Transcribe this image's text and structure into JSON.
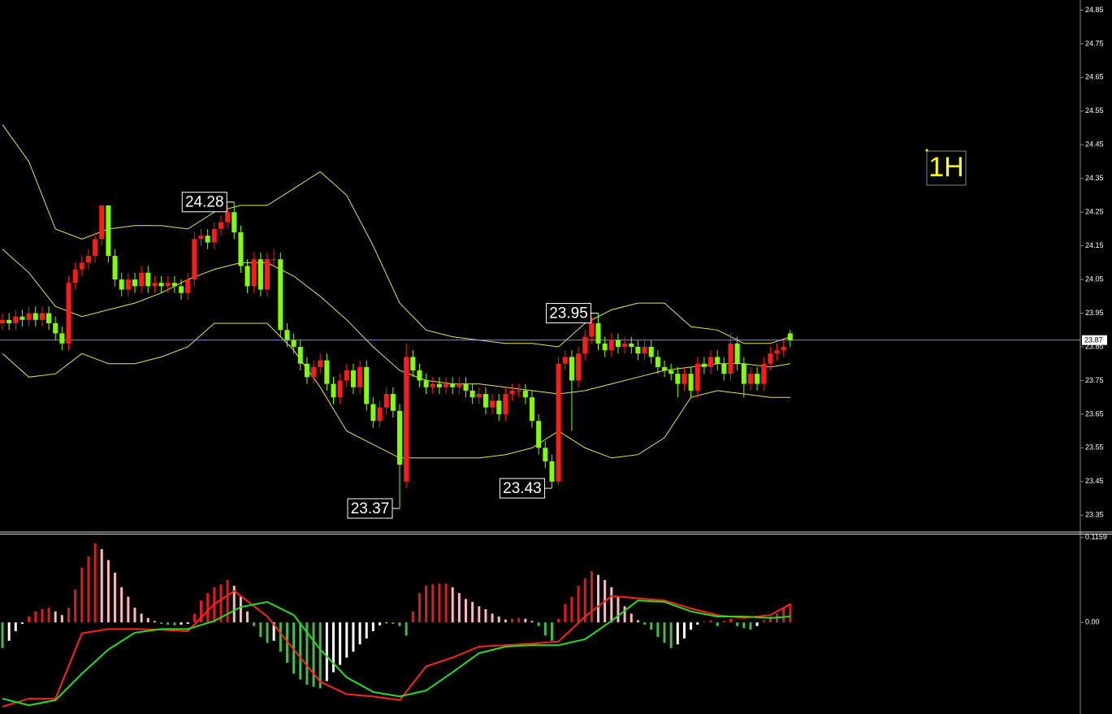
{
  "chart_data": [
    {
      "type": "candlestick",
      "timeframe": "1H",
      "up_color": "#ff1a1a",
      "down_color": "#7fff00",
      "band_color": "#e6e64c",
      "grid": false,
      "ylim": [
        23.3,
        24.88
      ],
      "yticks": [
        24.85,
        24.75,
        24.65,
        24.55,
        24.45,
        24.35,
        24.25,
        24.15,
        24.05,
        23.95,
        23.85,
        23.75,
        23.65,
        23.55,
        23.45,
        23.35
      ],
      "last_price": 23.87,
      "open": [
        23.92,
        23.93,
        23.92,
        23.94,
        23.93,
        23.95,
        23.93,
        23.95,
        23.92,
        23.89,
        23.86,
        24.04,
        24.08,
        24.1,
        24.12,
        24.17,
        24.27,
        24.12,
        24.05,
        24.02,
        24.05,
        24.03,
        24.07,
        24.03,
        24.04,
        24.03,
        24.04,
        24.03,
        24.01,
        24.05,
        24.17,
        24.18,
        24.16,
        24.2,
        24.22,
        24.25,
        24.19,
        24.09,
        24.03,
        24.11,
        24.02,
        24.11,
        24.11,
        23.9,
        23.87,
        23.85,
        23.8,
        23.76,
        23.79,
        23.81,
        23.74,
        23.7,
        23.75,
        23.78,
        23.73,
        23.79,
        23.68,
        23.63,
        23.67,
        23.71,
        23.66,
        23.45,
        23.82,
        23.78,
        23.75,
        23.73,
        23.74,
        23.73,
        23.74,
        23.73,
        23.74,
        23.72,
        23.7,
        23.71,
        23.67,
        23.69,
        23.65,
        23.71,
        23.72,
        23.72,
        23.7,
        23.63,
        23.55,
        23.51,
        23.45,
        23.8,
        23.82,
        23.75,
        23.83,
        23.88,
        23.92,
        23.86,
        23.84,
        23.87,
        23.85,
        23.86,
        23.85,
        23.83,
        23.85,
        23.82,
        23.79,
        23.78,
        23.77,
        23.74,
        23.77,
        23.72,
        23.8,
        23.79,
        23.82,
        23.8,
        23.77,
        23.86,
        23.8,
        23.74,
        23.77,
        23.74,
        23.8,
        23.83,
        23.84,
        23.89
      ],
      "high": [
        23.95,
        23.95,
        23.96,
        23.96,
        23.97,
        23.97,
        23.97,
        23.97,
        23.94,
        23.91,
        24.06,
        24.1,
        24.12,
        24.14,
        24.19,
        24.27,
        24.27,
        24.14,
        24.07,
        24.07,
        24.07,
        24.09,
        24.09,
        24.06,
        24.06,
        24.06,
        24.06,
        24.05,
        24.07,
        24.19,
        24.2,
        24.2,
        24.22,
        24.24,
        24.27,
        24.28,
        24.21,
        24.11,
        24.13,
        24.13,
        24.13,
        24.14,
        24.13,
        23.92,
        23.89,
        23.87,
        23.82,
        23.81,
        23.83,
        23.83,
        23.76,
        23.77,
        23.8,
        23.8,
        23.81,
        23.81,
        23.7,
        23.69,
        23.73,
        23.73,
        23.68,
        23.86,
        23.84,
        23.8,
        23.77,
        23.76,
        23.76,
        23.76,
        23.76,
        23.76,
        23.76,
        23.74,
        23.73,
        23.73,
        23.71,
        23.71,
        23.73,
        23.74,
        23.74,
        23.74,
        23.72,
        23.65,
        23.57,
        23.53,
        23.82,
        23.84,
        23.84,
        23.85,
        23.9,
        23.94,
        23.95,
        23.88,
        23.89,
        23.89,
        23.88,
        23.88,
        23.87,
        23.87,
        23.87,
        23.84,
        23.81,
        23.8,
        23.79,
        23.79,
        23.79,
        23.82,
        23.82,
        23.84,
        23.84,
        23.82,
        23.89,
        23.88,
        23.82,
        23.79,
        23.79,
        23.82,
        23.85,
        23.86,
        23.87,
        23.9
      ],
      "low": [
        23.9,
        23.9,
        23.9,
        23.91,
        23.91,
        23.91,
        23.91,
        23.9,
        23.87,
        23.84,
        23.84,
        24.02,
        24.06,
        24.08,
        24.1,
        24.15,
        24.1,
        24.03,
        24.0,
        24.0,
        24.01,
        24.01,
        24.01,
        24.01,
        24.01,
        24.01,
        24.01,
        23.99,
        23.99,
        24.03,
        24.15,
        24.14,
        24.14,
        24.18,
        24.2,
        24.17,
        24.07,
        24.01,
        24.01,
        24.0,
        24.0,
        24.09,
        23.88,
        23.85,
        23.83,
        23.78,
        23.74,
        23.74,
        23.77,
        23.72,
        23.68,
        23.68,
        23.73,
        23.71,
        23.71,
        23.66,
        23.61,
        23.61,
        23.65,
        23.64,
        23.37,
        23.43,
        23.76,
        23.73,
        23.71,
        23.71,
        23.71,
        23.71,
        23.71,
        23.71,
        23.7,
        23.68,
        23.68,
        23.65,
        23.65,
        23.63,
        23.63,
        23.69,
        23.7,
        23.68,
        23.61,
        23.53,
        23.49,
        23.43,
        23.44,
        23.78,
        23.6,
        23.73,
        23.81,
        23.86,
        23.84,
        23.82,
        23.82,
        23.83,
        23.83,
        23.83,
        23.81,
        23.81,
        23.8,
        23.77,
        23.76,
        23.75,
        23.7,
        23.72,
        23.7,
        23.7,
        23.77,
        23.77,
        23.78,
        23.75,
        23.75,
        23.78,
        23.7,
        23.72,
        23.72,
        23.72,
        23.78,
        23.81,
        23.82,
        23.85
      ],
      "close": [
        23.93,
        23.92,
        23.94,
        23.93,
        23.95,
        23.93,
        23.95,
        23.92,
        23.89,
        23.86,
        24.04,
        24.08,
        24.1,
        24.12,
        24.17,
        24.27,
        24.12,
        24.05,
        24.02,
        24.05,
        24.03,
        24.07,
        24.03,
        24.04,
        24.03,
        24.04,
        24.03,
        24.01,
        24.05,
        24.17,
        24.18,
        24.16,
        24.2,
        24.22,
        24.25,
        24.19,
        24.09,
        24.03,
        24.11,
        24.02,
        24.11,
        24.11,
        23.9,
        23.87,
        23.85,
        23.8,
        23.76,
        23.79,
        23.81,
        23.74,
        23.7,
        23.75,
        23.78,
        23.73,
        23.79,
        23.68,
        23.63,
        23.67,
        23.71,
        23.66,
        23.5,
        23.82,
        23.78,
        23.75,
        23.73,
        23.74,
        23.73,
        23.74,
        23.73,
        23.74,
        23.72,
        23.7,
        23.71,
        23.67,
        23.69,
        23.65,
        23.71,
        23.72,
        23.72,
        23.7,
        23.63,
        23.55,
        23.51,
        23.45,
        23.8,
        23.82,
        23.75,
        23.83,
        23.88,
        23.92,
        23.86,
        23.84,
        23.87,
        23.85,
        23.86,
        23.85,
        23.83,
        23.85,
        23.82,
        23.79,
        23.78,
        23.77,
        23.74,
        23.77,
        23.72,
        23.8,
        23.79,
        23.82,
        23.8,
        23.77,
        23.86,
        23.8,
        23.74,
        23.77,
        23.74,
        23.8,
        23.83,
        23.84,
        23.85,
        23.87
      ],
      "bands": [
        {
          "x": [
            0,
            4,
            8,
            12,
            16,
            20,
            24,
            28,
            32,
            36,
            40,
            44,
            48,
            52,
            56,
            60,
            64,
            68,
            72,
            76,
            80,
            84,
            88,
            92,
            96,
            100,
            104,
            108,
            112,
            116,
            119
          ],
          "values": [
            24.51,
            24.4,
            24.2,
            24.17,
            24.2,
            24.21,
            24.21,
            24.2,
            24.25,
            24.27,
            24.27,
            24.32,
            24.37,
            24.3,
            24.15,
            23.98,
            23.9,
            23.88,
            23.87,
            23.86,
            23.86,
            23.85,
            23.92,
            23.96,
            23.98,
            23.98,
            23.91,
            23.9,
            23.86,
            23.86,
            23.88
          ]
        },
        {
          "x": [
            0,
            4,
            8,
            12,
            16,
            20,
            24,
            28,
            32,
            36,
            40,
            44,
            48,
            52,
            56,
            60,
            64,
            68,
            72,
            76,
            80,
            84,
            88,
            92,
            96,
            100,
            104,
            108,
            112,
            116,
            119
          ],
          "values": [
            24.14,
            24.07,
            23.97,
            23.94,
            23.96,
            23.98,
            24.01,
            24.05,
            24.08,
            24.1,
            24.1,
            24.06,
            24.0,
            23.93,
            23.85,
            23.78,
            23.75,
            23.74,
            23.74,
            23.73,
            23.72,
            23.71,
            23.72,
            23.74,
            23.76,
            23.78,
            23.79,
            23.8,
            23.8,
            23.79,
            23.8
          ]
        },
        {
          "x": [
            0,
            4,
            8,
            12,
            16,
            20,
            24,
            28,
            32,
            36,
            40,
            44,
            48,
            52,
            56,
            60,
            64,
            68,
            72,
            76,
            80,
            84,
            88,
            92,
            96,
            100,
            104,
            108,
            112,
            116,
            119
          ],
          "values": [
            23.83,
            23.76,
            23.77,
            23.83,
            23.8,
            23.8,
            23.82,
            23.85,
            23.92,
            23.92,
            23.92,
            23.84,
            23.73,
            23.6,
            23.56,
            23.52,
            23.52,
            23.52,
            23.52,
            23.53,
            23.55,
            23.6,
            23.55,
            23.52,
            23.53,
            23.58,
            23.7,
            23.72,
            23.71,
            23.7,
            23.7
          ]
        }
      ],
      "annotations": [
        {
          "index": 35,
          "value": 24.28
        },
        {
          "index": 90,
          "value": 23.95
        },
        {
          "index": 60,
          "value": 23.37
        },
        {
          "index": 83,
          "value": 23.43
        }
      ]
    },
    {
      "type": "macd",
      "ylim": [
        -0.125,
        0.12
      ],
      "yticks": [
        0.1159,
        {
          "value": 0,
          "label": "0.00"
        }
      ],
      "rise_color": "#e41a1a",
      "fall_color": "#ffb6c1",
      "drop_color": "#44bb44",
      "recover_color": "#ffffff",
      "histogram": [
        -0.035,
        -0.025,
        -0.012,
        -0.002,
        0.008,
        0.015,
        0.018,
        0.02,
        0.015,
        0.01,
        0.02,
        0.045,
        0.075,
        0.09,
        0.108,
        0.1,
        0.085,
        0.068,
        0.048,
        0.035,
        0.02,
        0.012,
        0.006,
        0.002,
        -0.002,
        -0.003,
        -0.004,
        -0.003,
        -0.002,
        0.012,
        0.03,
        0.04,
        0.048,
        0.052,
        0.058,
        0.05,
        0.035,
        0.015,
        -0.005,
        -0.02,
        -0.028,
        -0.025,
        -0.04,
        -0.055,
        -0.07,
        -0.078,
        -0.085,
        -0.088,
        -0.09,
        -0.08,
        -0.068,
        -0.058,
        -0.048,
        -0.04,
        -0.03,
        -0.022,
        -0.012,
        -0.004,
        -0.001,
        -0.002,
        -0.005,
        -0.018,
        0.015,
        0.04,
        0.05,
        0.052,
        0.053,
        0.053,
        0.048,
        0.04,
        0.032,
        0.028,
        0.022,
        0.018,
        0.012,
        0.008,
        0.004,
        0.005,
        0.006,
        0.005,
        0.002,
        -0.005,
        -0.018,
        -0.025,
        0.005,
        0.025,
        0.035,
        0.05,
        0.06,
        0.07,
        0.065,
        0.058,
        0.048,
        0.036,
        0.022,
        0.012,
        0.003,
        -0.003,
        -0.01,
        -0.02,
        -0.028,
        -0.035,
        -0.03,
        -0.022,
        -0.01,
        -0.003,
        0.001,
        0.003,
        -0.005,
        0.002,
        0.005,
        -0.005,
        -0.008,
        -0.01,
        -0.005,
        0.003,
        0.008,
        0.012,
        0.02,
        0.026
      ],
      "lines": [
        {
          "color": "#ff2020",
          "x": [
            0,
            4,
            8,
            12,
            16,
            20,
            24,
            28,
            32,
            35,
            40,
            44,
            48,
            52,
            56,
            60,
            64,
            68,
            72,
            76,
            80,
            84,
            88,
            92,
            96,
            100,
            104,
            108,
            112,
            116,
            119
          ],
          "values": [
            -0.115,
            -0.104,
            -0.104,
            -0.015,
            -0.009,
            -0.009,
            -0.01,
            -0.012,
            0.025,
            0.043,
            0.008,
            -0.037,
            -0.081,
            -0.098,
            -0.101,
            -0.106,
            -0.06,
            -0.048,
            -0.033,
            -0.031,
            -0.029,
            -0.026,
            0.008,
            0.036,
            0.033,
            0.03,
            0.019,
            0.01,
            0.006,
            0.01,
            0.025
          ]
        },
        {
          "color": "#22dd22",
          "x": [
            0,
            4,
            8,
            12,
            16,
            20,
            24,
            28,
            32,
            36,
            40,
            44,
            48,
            52,
            56,
            60,
            64,
            68,
            72,
            76,
            80,
            84,
            88,
            92,
            96,
            100,
            104,
            108,
            112,
            116,
            119
          ],
          "values": [
            -0.104,
            -0.113,
            -0.106,
            -0.07,
            -0.037,
            -0.014,
            -0.009,
            -0.009,
            0.002,
            0.021,
            0.028,
            0.01,
            -0.037,
            -0.075,
            -0.095,
            -0.101,
            -0.093,
            -0.068,
            -0.042,
            -0.033,
            -0.031,
            -0.031,
            -0.023,
            0.002,
            0.03,
            0.028,
            0.015,
            0.008,
            0.008,
            0.006,
            0.008
          ]
        }
      ]
    }
  ]
}
